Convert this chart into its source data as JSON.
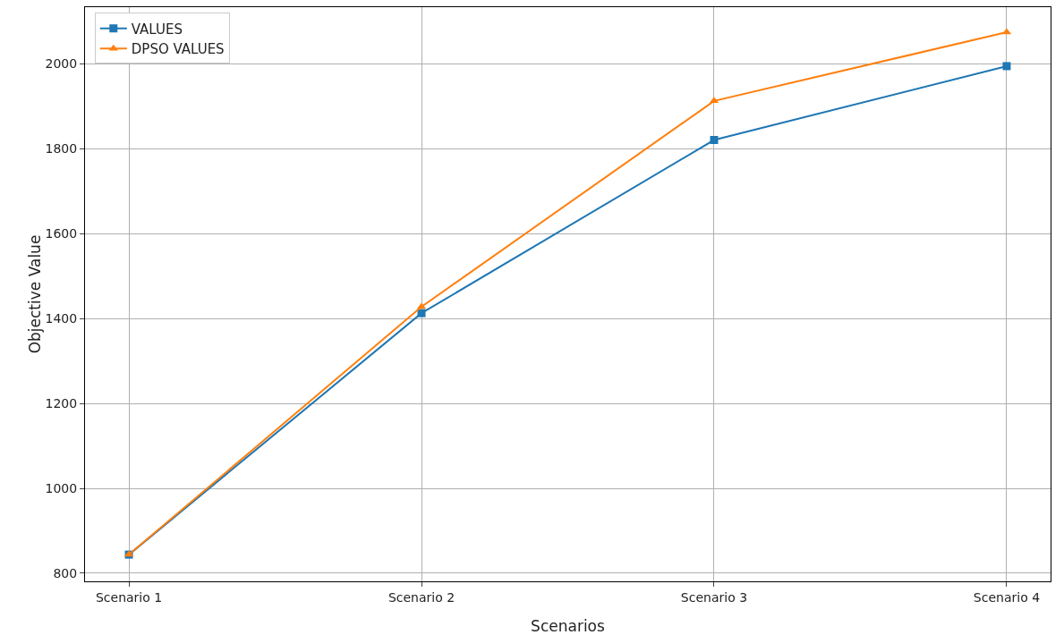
{
  "chart_data": {
    "type": "line",
    "xlabel": "Scenarios",
    "ylabel": "Objective Value",
    "categories": [
      "Scenario 1",
      "Scenario 2",
      "Scenario 3",
      "Scenario 4"
    ],
    "series": [
      {
        "name": "VALUES",
        "color": "#1f77b4",
        "marker": "square",
        "values": [
          844,
          1413,
          1821,
          1995
        ]
      },
      {
        "name": "DPSO VALUES",
        "color": "#ff7f0e",
        "marker": "triangle",
        "values": [
          844,
          1428,
          1913,
          2075
        ]
      }
    ],
    "ylim": [
      781,
      2134
    ],
    "yticks": [
      800,
      1000,
      1200,
      1400,
      1600,
      1800,
      2000
    ],
    "grid": true,
    "legend": "top left",
    "line_style": "solid"
  }
}
